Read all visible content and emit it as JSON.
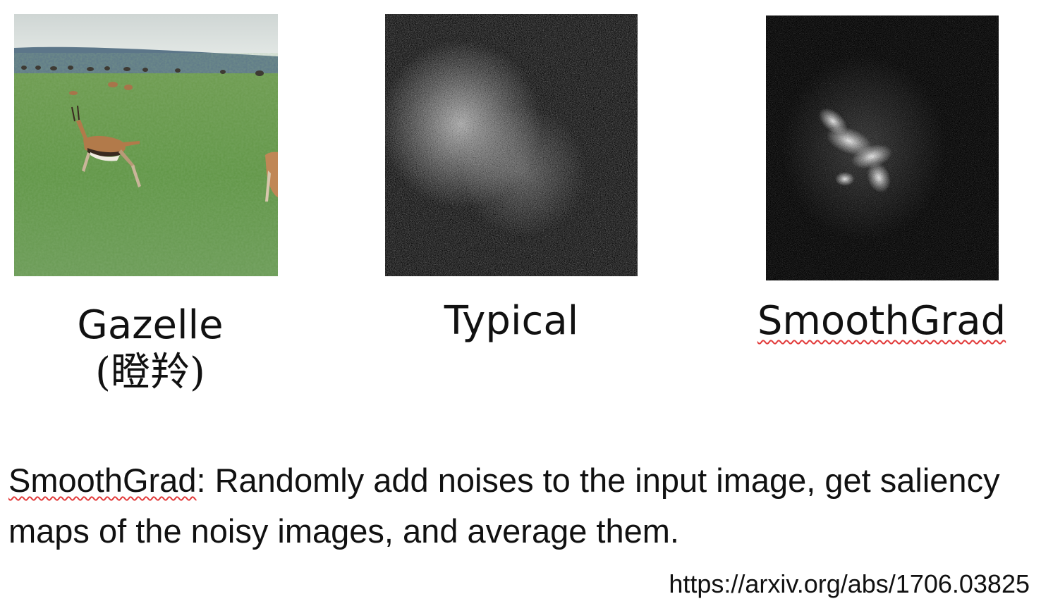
{
  "panels": [
    {
      "caption": "Gazelle",
      "caption_sub": "(瞪羚)",
      "image_subject": "gazelle-photo"
    },
    {
      "caption": "Typical",
      "image_subject": "typical-saliency-map"
    },
    {
      "caption": "SmoothGrad",
      "image_subject": "smoothgrad-saliency-map"
    }
  ],
  "description": {
    "term": "SmoothGrad",
    "text": ": Randomly add noises to the input image, get saliency maps of the noisy images, and average them."
  },
  "reference_url": "https://arxiv.org/abs/1706.03825",
  "colors": {
    "sky": "#dfe4e2",
    "hills": "#5a7486",
    "grass": "#5f9444",
    "saliency_bg": "#0a0a0a",
    "spellcheck": "#e23b3b"
  }
}
